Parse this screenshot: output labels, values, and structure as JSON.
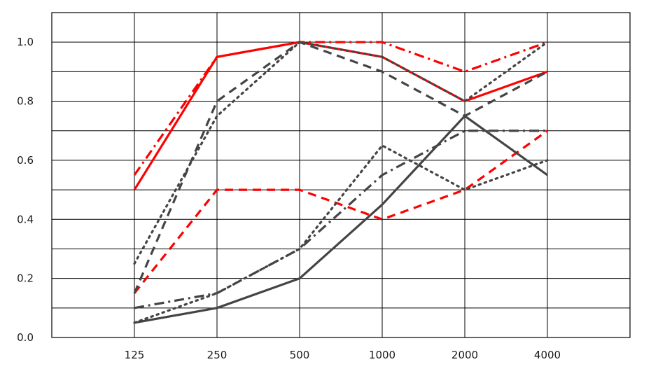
{
  "chart_data": {
    "type": "line",
    "title": "",
    "xlabel": "",
    "ylabel": "",
    "categories": [
      "125",
      "250",
      "500",
      "1000",
      "2000",
      "4000"
    ],
    "ylim": [
      0.0,
      1.1
    ],
    "y_ticks": [
      "0.0",
      "0.2",
      "0.4",
      "0.6",
      "0.8",
      "1.0"
    ],
    "grid": true,
    "legend": "none",
    "series": [
      {
        "color": "#ff0000",
        "style": "solid",
        "values": [
          0.5,
          0.95,
          1.0,
          0.95,
          0.8,
          0.9
        ]
      },
      {
        "color": "#ff0000",
        "style": "dashdot",
        "values": [
          0.55,
          0.95,
          1.0,
          1.0,
          0.9,
          1.0
        ]
      },
      {
        "color": "#ff0000",
        "style": "dashed",
        "values": [
          0.15,
          0.5,
          0.5,
          0.4,
          0.5,
          0.7
        ]
      },
      {
        "color": "#444444",
        "style": "dashed",
        "values": [
          0.15,
          0.8,
          1.0,
          0.9,
          0.75,
          0.9
        ]
      },
      {
        "color": "#444444",
        "style": "dotted",
        "values": [
          0.25,
          0.75,
          1.0,
          0.95,
          0.8,
          1.0
        ]
      },
      {
        "color": "#444444",
        "style": "solid",
        "values": [
          0.05,
          0.1,
          0.2,
          0.45,
          0.75,
          0.55
        ]
      },
      {
        "color": "#444444",
        "style": "dashdot",
        "values": [
          0.1,
          0.15,
          0.3,
          0.55,
          0.7,
          0.7
        ]
      },
      {
        "color": "#444444",
        "style": "dotted",
        "values": [
          0.05,
          0.15,
          0.3,
          0.65,
          0.5,
          0.6
        ]
      }
    ]
  }
}
